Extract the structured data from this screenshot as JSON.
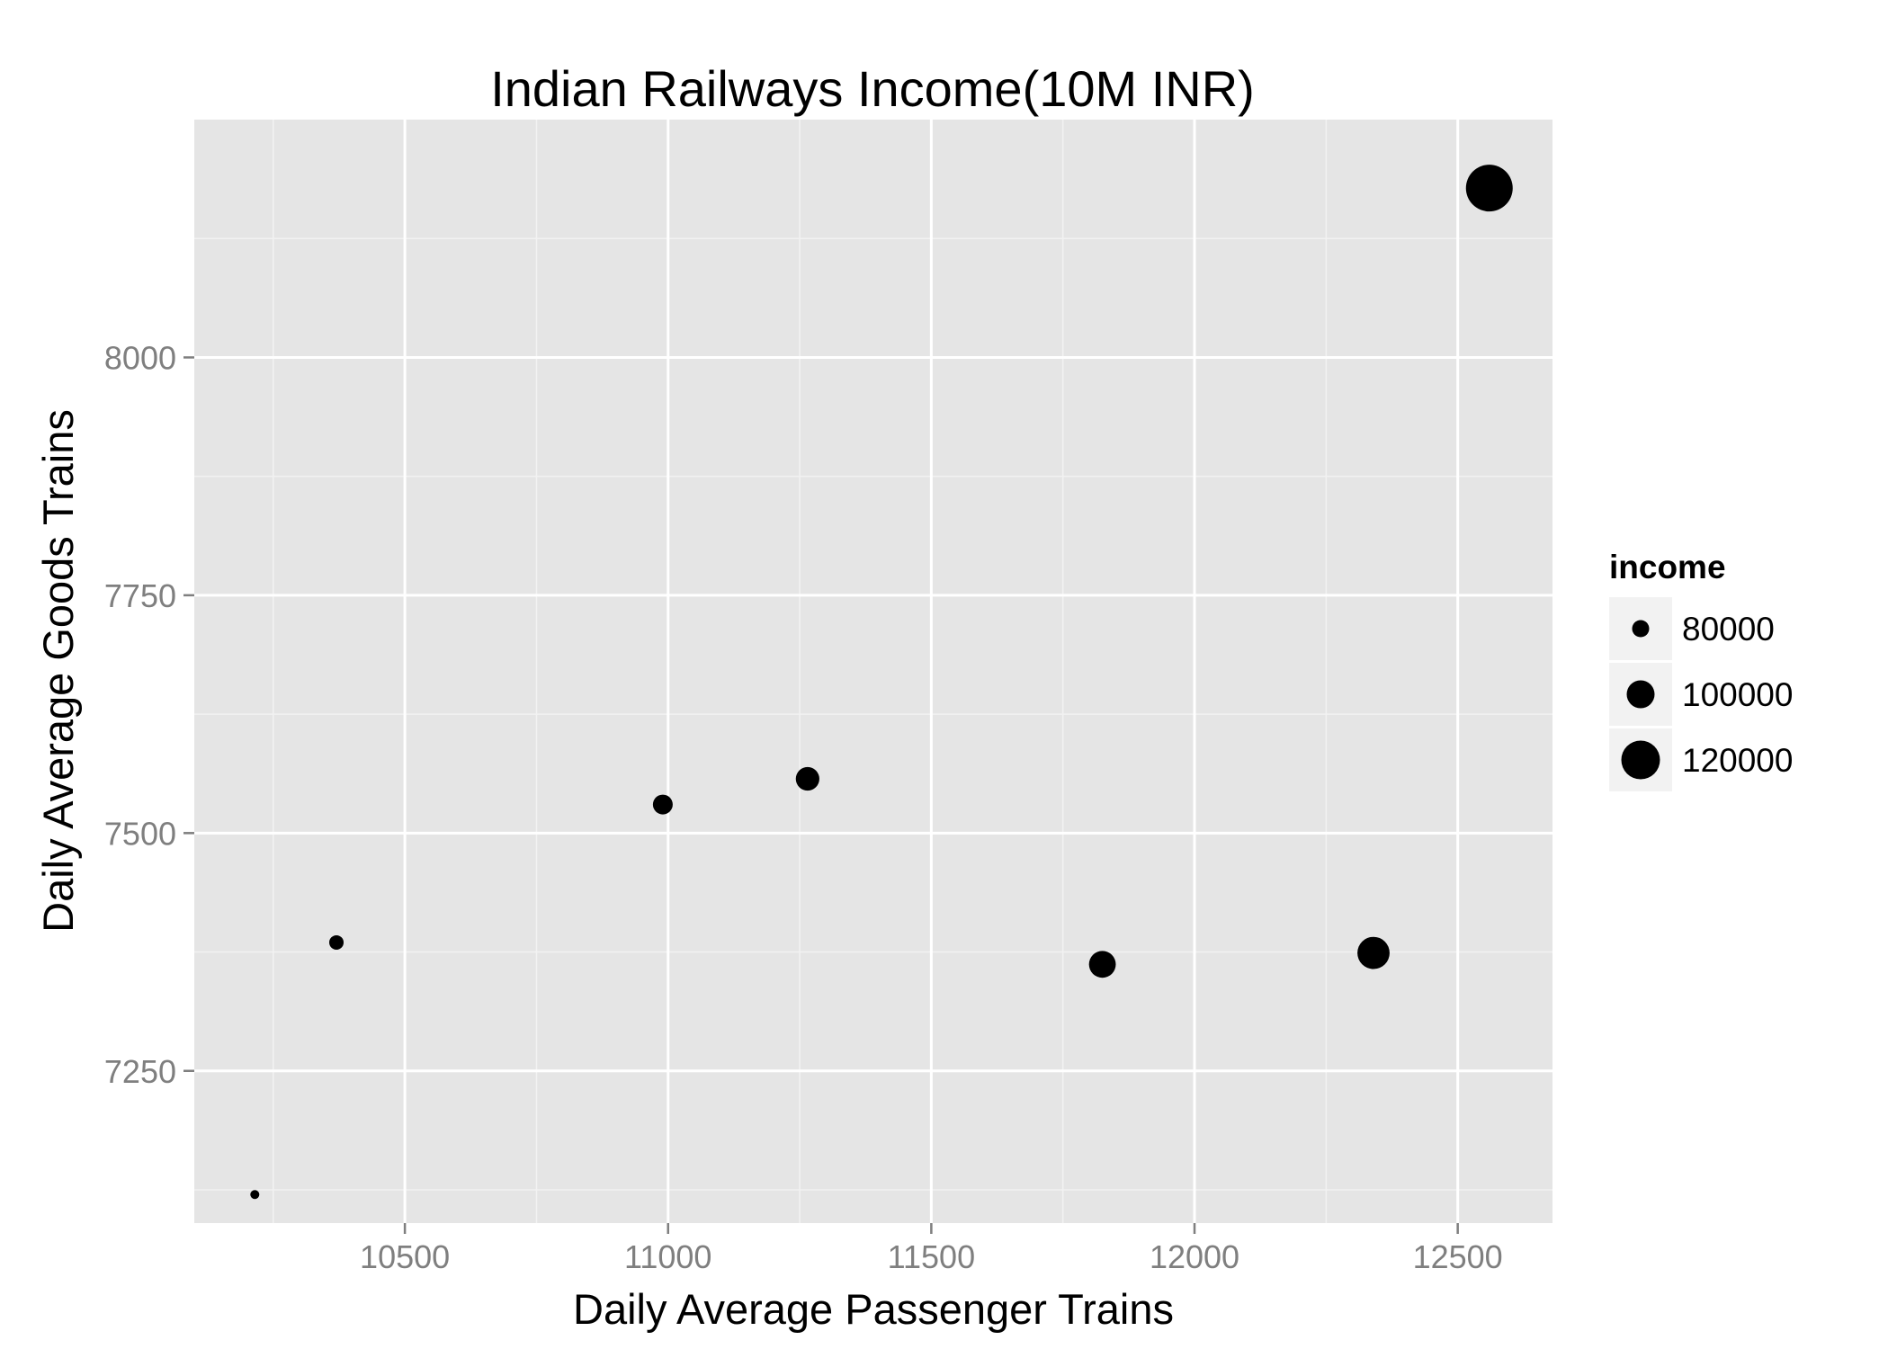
{
  "chart_data": {
    "type": "scatter",
    "title": "Indian Railways Income(10M INR)",
    "xlabel": "Daily Average Passenger Trains",
    "ylabel": "Daily Average Goods Trains",
    "xlim": [
      10100,
      12680
    ],
    "ylim": [
      7090,
      8250
    ],
    "x_ticks": [
      10500,
      11000,
      11500,
      12000,
      12500
    ],
    "y_ticks": [
      7250,
      7500,
      7750,
      8000
    ],
    "grid": true,
    "size_legend": {
      "title": "income",
      "entries": [
        {
          "label": "80000",
          "value": 80000
        },
        {
          "label": "100000",
          "value": 100000
        },
        {
          "label": "120000",
          "value": 120000
        }
      ],
      "position": "right"
    },
    "points": [
      {
        "x": 10215,
        "y": 7120,
        "income": 65000
      },
      {
        "x": 10370,
        "y": 7385,
        "income": 75000
      },
      {
        "x": 10990,
        "y": 7530,
        "income": 85000
      },
      {
        "x": 11265,
        "y": 7557,
        "income": 92000
      },
      {
        "x": 11825,
        "y": 7362,
        "income": 98000
      },
      {
        "x": 12340,
        "y": 7374,
        "income": 108000
      },
      {
        "x": 12560,
        "y": 8178,
        "income": 135000
      }
    ],
    "colors": {
      "panel": "#e5e5e5",
      "grid_major": "#ffffff",
      "grid_minor": "#f2f2f2",
      "point": "#000000",
      "legend_key_bg": "#f2f2f2",
      "tick_text": "#7f7f7f"
    }
  }
}
